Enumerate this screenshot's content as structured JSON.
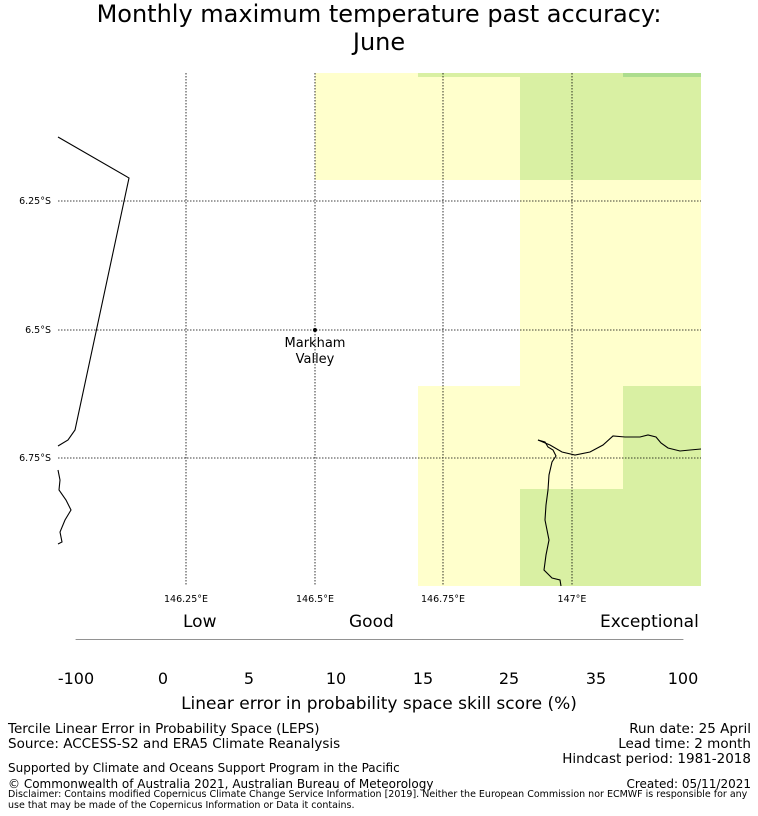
{
  "title": {
    "line1": "Monthly maximum temperature past accuracy:",
    "line2": "June"
  },
  "map": {
    "lat_labels": [
      "6.25°S",
      "6.5°S",
      "6.75°S"
    ],
    "lon_labels": [
      "146.25°E",
      "146.5°E",
      "146.75°E",
      "147°E"
    ],
    "place": {
      "line1": "Markham",
      "line2": "Valley"
    }
  },
  "colorbar": {
    "category_low": "Low",
    "category_good": "Good",
    "category_exceptional": "Exceptional",
    "ticks": [
      "-100",
      "0",
      "5",
      "10",
      "15",
      "25",
      "35",
      "100"
    ],
    "colors": [
      "#ffffff",
      "#ffffcc",
      "#d9f0a3",
      "#addd8e",
      "#78c679",
      "#41ab5d",
      "#238443"
    ],
    "label": "Linear error in probability space skill score (%)"
  },
  "footer": {
    "left1": "Tercile Linear Error in Probability Space (LEPS)",
    "left2": "Source: ACCESS-S2 and ERA5 Climate Reanalysis",
    "support": "Supported by Climate and Oceans Support Program in the Pacific",
    "copyright": "© Commonwealth of Australia 2021, Australian Bureau of Meteorology",
    "run_date": "Run date: 25 April",
    "lead_time": "Lead time: 2 month",
    "hindcast": "Hindcast period: 1981-2018",
    "created": "Created: 05/11/2021",
    "disclaimer": "Disclaimer: Contains modified Copernicus Climate Change Service Information [2019]. Neither the European Commission nor ECMWF is responsible for any use that may be made of the Copernicus Information or Data it contains."
  }
}
